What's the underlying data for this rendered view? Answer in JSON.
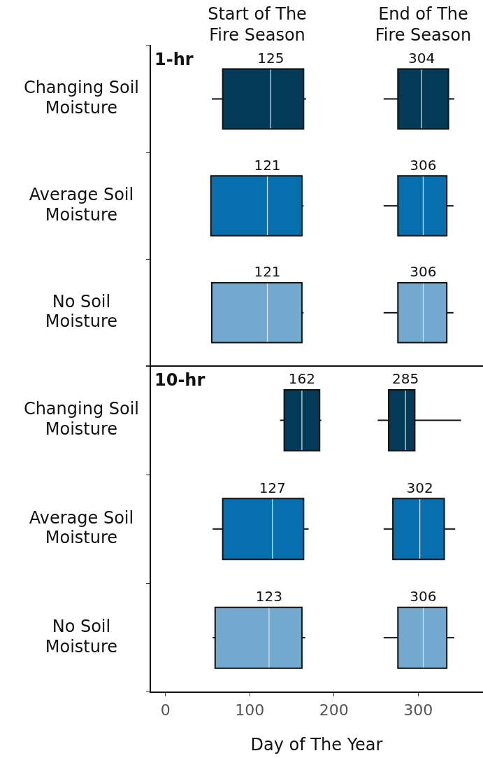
{
  "chart_data": [
    {
      "type": "box",
      "title": "1-hr",
      "orientation": "horizontal",
      "categories": [
        "Changing Soil Moisture",
        "Average Soil Moisture",
        "No Soil Moisture"
      ],
      "xlim": [
        -18,
        377
      ],
      "xticks": [
        0,
        100,
        200,
        300
      ],
      "tick_labels": "y",
      "series": [
        {
          "name": "Start of The Fire Season",
          "colors": [
            "#033a57",
            "#076fae",
            "#74a9cf"
          ],
          "value_labels": [
            "125",
            "121",
            "121"
          ],
          "boxes": [
            {
              "low": 55,
              "q1": 68,
              "median": 125,
              "q3": 164,
              "high": 167
            },
            {
              "low": 54,
              "q1": 54,
              "median": 121,
              "q3": 162,
              "high": 164
            },
            {
              "low": 55,
              "q1": 55,
              "median": 121,
              "q3": 162,
              "high": 164
            }
          ]
        },
        {
          "name": "End of The Fire Season",
          "colors": [
            "#033a57",
            "#076fae",
            "#74a9cf"
          ],
          "value_labels": [
            "304",
            "306",
            "306"
          ],
          "boxes": [
            {
              "low": 259,
              "q1": 276,
              "median": 304,
              "q3": 336,
              "high": 343
            },
            {
              "low": 259,
              "q1": 276,
              "median": 306,
              "q3": 334,
              "high": 342
            },
            {
              "low": 259,
              "q1": 276,
              "median": 306,
              "q3": 334,
              "high": 342
            }
          ]
        }
      ]
    },
    {
      "type": "box",
      "title": "10-hr",
      "orientation": "horizontal",
      "categories": [
        "Changing Soil Moisture",
        "Average Soil Moisture",
        "No Soil Moisture"
      ],
      "xlabel": "Day of The Year",
      "xlim": [
        -18,
        377
      ],
      "xticks": [
        0,
        100,
        200,
        300
      ],
      "series": [
        {
          "colors": [
            "#033a57",
            "#076fae",
            "#74a9cf"
          ],
          "value_labels": [
            "162",
            "127",
            "123"
          ],
          "boxes": [
            {
              "low": 136,
              "q1": 141,
              "median": 162,
              "q3": 183,
              "high": 185
            },
            {
              "low": 56,
              "q1": 68,
              "median": 127,
              "q3": 164,
              "high": 170
            },
            {
              "low": 56,
              "q1": 59,
              "median": 123,
              "q3": 162,
              "high": 166
            }
          ]
        },
        {
          "colors": [
            "#033a57",
            "#076fae",
            "#74a9cf"
          ],
          "value_labels": [
            "285",
            "302",
            "306"
          ],
          "boxes": [
            {
              "low": 252,
              "q1": 265,
              "median": 285,
              "q3": 296,
              "high": 351
            },
            {
              "low": 259,
              "q1": 270,
              "median": 302,
              "q3": 331,
              "high": 344
            },
            {
              "low": 259,
              "q1": 276,
              "median": 306,
              "q3": 334,
              "high": 343
            }
          ]
        }
      ]
    }
  ]
}
